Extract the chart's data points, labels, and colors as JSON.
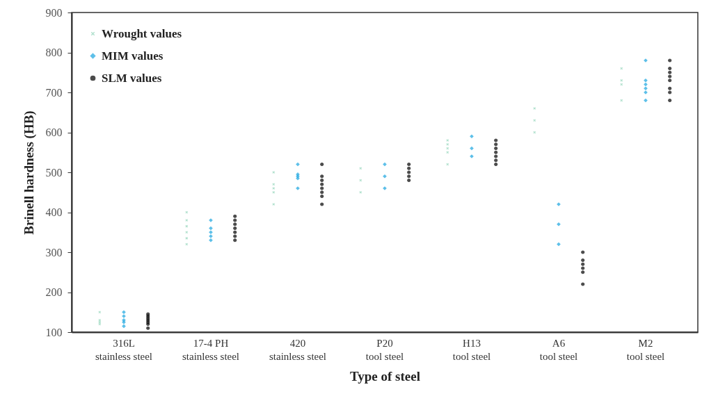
{
  "chart_data": {
    "type": "scatter",
    "xlabel": "Type of steel",
    "ylabel": "Brinell hardness (HB)",
    "categories": [
      "316L\nstainless steel",
      "17-4 PH\nstainless steel",
      "420\nstainless steel",
      "P20\ntool steel",
      "H13\ntool steel",
      "A6\ntool steel",
      "M2\ntool steel"
    ],
    "ylim": [
      100,
      900
    ],
    "yticks": [
      100,
      200,
      300,
      400,
      500,
      600,
      700,
      800,
      900
    ],
    "grid": false,
    "legend": "top left",
    "series": [
      {
        "name": "Wrought values",
        "color": "#8fd4b8",
        "marker": "cross",
        "x": [
          "316L\nstainless steel",
          "316L\nstainless steel",
          "316L\nstainless steel",
          "316L\nstainless steel",
          "17-4 PH\nstainless steel",
          "17-4 PH\nstainless steel",
          "17-4 PH\nstainless steel",
          "17-4 PH\nstainless steel",
          "17-4 PH\nstainless steel",
          "17-4 PH\nstainless steel",
          "420\nstainless steel",
          "420\nstainless steel",
          "420\nstainless steel",
          "420\nstainless steel",
          "420\nstainless steel",
          "P20\ntool steel",
          "P20\ntool steel",
          "P20\ntool steel",
          "H13\ntool steel",
          "H13\ntool steel",
          "H13\ntool steel",
          "H13\ntool steel",
          "H13\ntool steel",
          "A6\ntool steel",
          "A6\ntool steel",
          "A6\ntool steel",
          "M2\ntool steel",
          "M2\ntool steel",
          "M2\ntool steel",
          "M2\ntool steel"
        ],
        "values": [
          150,
          130,
          125,
          120,
          400,
          380,
          365,
          350,
          335,
          320,
          500,
          470,
          460,
          450,
          420,
          510,
          480,
          450,
          580,
          570,
          560,
          550,
          520,
          660,
          630,
          600,
          760,
          730,
          720,
          680
        ]
      },
      {
        "name": "MIM values",
        "color": "#1ba6e0",
        "marker": "diamond",
        "x": [
          "316L\nstainless steel",
          "316L\nstainless steel",
          "316L\nstainless steel",
          "316L\nstainless steel",
          "316L\nstainless steel",
          "17-4 PH\nstainless steel",
          "17-4 PH\nstainless steel",
          "17-4 PH\nstainless steel",
          "17-4 PH\nstainless steel",
          "17-4 PH\nstainless steel",
          "420\nstainless steel",
          "420\nstainless steel",
          "420\nstainless steel",
          "420\nstainless steel",
          "420\nstainless steel",
          "P20\ntool steel",
          "P20\ntool steel",
          "P20\ntool steel",
          "H13\ntool steel",
          "H13\ntool steel",
          "H13\ntool steel",
          "A6\ntool steel",
          "A6\ntool steel",
          "A6\ntool steel",
          "M2\ntool steel",
          "M2\ntool steel",
          "M2\ntool steel",
          "M2\ntool steel",
          "M2\ntool steel",
          "M2\ntool steel"
        ],
        "values": [
          150,
          140,
          130,
          125,
          115,
          380,
          360,
          350,
          340,
          330,
          520,
          495,
          490,
          485,
          460,
          520,
          490,
          460,
          590,
          560,
          540,
          420,
          370,
          320,
          780,
          730,
          720,
          710,
          700,
          680
        ]
      },
      {
        "name": "SLM values",
        "color": "#000000",
        "marker": "circle",
        "x": [
          "316L\nstainless steel",
          "316L\nstainless steel",
          "316L\nstainless steel",
          "316L\nstainless steel",
          "316L\nstainless steel",
          "316L\nstainless steel",
          "316L\nstainless steel",
          "17-4 PH\nstainless steel",
          "17-4 PH\nstainless steel",
          "17-4 PH\nstainless steel",
          "17-4 PH\nstainless steel",
          "17-4 PH\nstainless steel",
          "17-4 PH\nstainless steel",
          "17-4 PH\nstainless steel",
          "420\nstainless steel",
          "420\nstainless steel",
          "420\nstainless steel",
          "420\nstainless steel",
          "420\nstainless steel",
          "420\nstainless steel",
          "420\nstainless steel",
          "420\nstainless steel",
          "P20\ntool steel",
          "P20\ntool steel",
          "P20\ntool steel",
          "P20\ntool steel",
          "P20\ntool steel",
          "H13\ntool steel",
          "H13\ntool steel",
          "H13\ntool steel",
          "H13\ntool steel",
          "H13\ntool steel",
          "H13\ntool steel",
          "H13\ntool steel",
          "A6\ntool steel",
          "A6\ntool steel",
          "A6\ntool steel",
          "A6\ntool steel",
          "A6\ntool steel",
          "A6\ntool steel",
          "M2\ntool steel",
          "M2\ntool steel",
          "M2\ntool steel",
          "M2\ntool steel",
          "M2\ntool steel",
          "M2\ntool steel",
          "M2\ntool steel",
          "M2\ntool steel"
        ],
        "values": [
          145,
          140,
          135,
          130,
          125,
          120,
          110,
          390,
          380,
          370,
          360,
          350,
          340,
          330,
          520,
          490,
          480,
          470,
          460,
          450,
          440,
          420,
          520,
          510,
          500,
          490,
          480,
          580,
          570,
          560,
          550,
          540,
          530,
          520,
          300,
          280,
          270,
          260,
          250,
          220,
          780,
          760,
          750,
          740,
          730,
          710,
          700,
          680
        ]
      }
    ]
  }
}
